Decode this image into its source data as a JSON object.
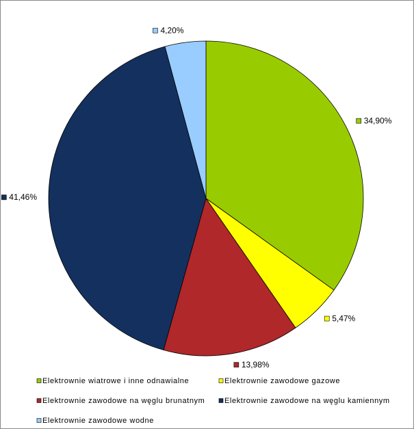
{
  "chart_data": {
    "type": "pie",
    "categories": [
      "Elektrownie wiatrowe i inne odnawialne",
      "Elektrownie zawodowe gazowe",
      "Elektrownie zawodowe na węglu brunatnym",
      "Elektrownie zawodowe na węglu kamiennym",
      "Elektrownie zawodowe wodne"
    ],
    "values": [
      34.9,
      5.47,
      13.98,
      41.46,
      4.2
    ],
    "value_labels": [
      "34,90%",
      "5,47%",
      "13,98%",
      "41,46%",
      "4,20%"
    ],
    "colors": [
      "#99cc00",
      "#ffff00",
      "#b0282a",
      "#14305e",
      "#99ccff"
    ]
  }
}
